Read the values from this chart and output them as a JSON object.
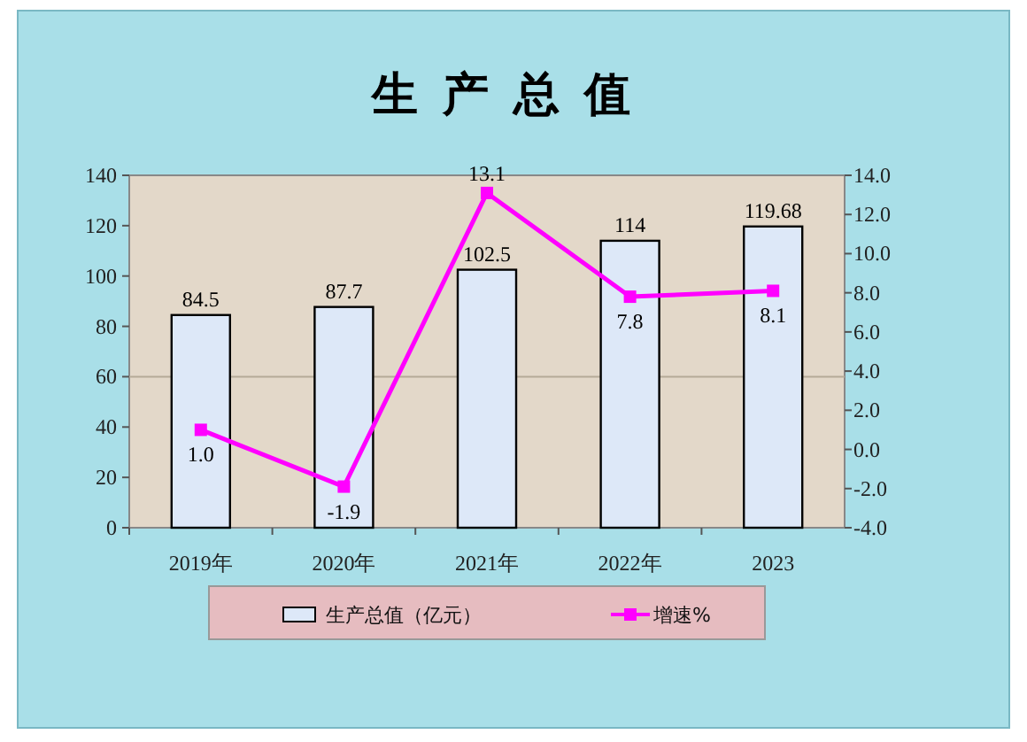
{
  "chart_data": {
    "type": "bar",
    "title": "生产总值",
    "categories": [
      "2019年",
      "2020年",
      "2021年",
      "2022年",
      "2023"
    ],
    "series": [
      {
        "name": "生产总值（亿元）",
        "color": "#dde8f8",
        "values": [
          84.5,
          87.7,
          102.5,
          114,
          119.68
        ],
        "value_labels": [
          "84.5",
          "87.7",
          "102.5",
          "114",
          "119.68"
        ]
      },
      {
        "name": "增速%",
        "type": "line",
        "axis": "y2",
        "color": "#ff00ff",
        "marker": "square",
        "values": [
          1.0,
          -1.9,
          13.1,
          7.8,
          8.1
        ],
        "value_labels": [
          "1.0",
          "-1.9",
          "13.1",
          "7.8",
          "8.1"
        ]
      }
    ],
    "ylim": [
      0,
      140
    ],
    "yticks": [
      0,
      20,
      40,
      60,
      80,
      100,
      120,
      140
    ],
    "y2lim": [
      -4,
      14
    ],
    "y2ticks": [
      {
        "value": -4,
        "label": "-4.0"
      },
      {
        "value": -2,
        "label": "-2.0"
      },
      {
        "value": 0,
        "label": "0.0"
      },
      {
        "value": 2,
        "label": "2.0"
      },
      {
        "value": 4,
        "label": "4.0"
      },
      {
        "value": 6,
        "label": "6.0"
      },
      {
        "value": 8,
        "label": "8.0"
      },
      {
        "value": 10,
        "label": "10.0"
      },
      {
        "value": 12,
        "label": "12.0"
      },
      {
        "value": 14,
        "label": "14.0"
      }
    ],
    "ref_lines": [
      {
        "axis": "y",
        "value": 60,
        "color": "#b5aa98"
      }
    ],
    "legend": "bottom"
  }
}
